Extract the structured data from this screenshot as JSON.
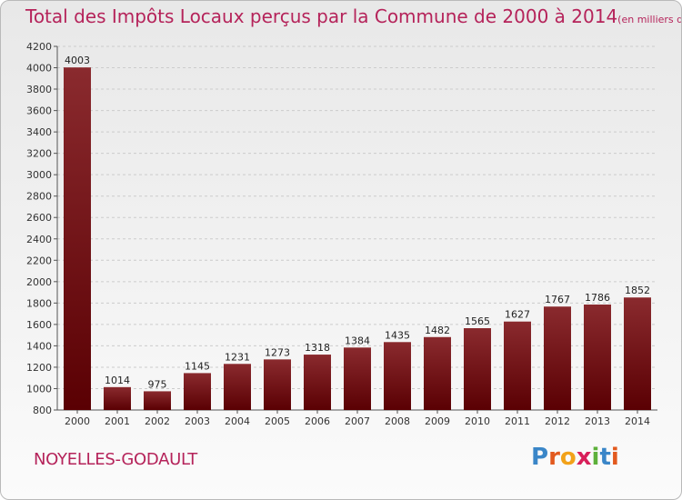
{
  "title": "Total des Impôts Locaux perçus par la Commune de 2000 à 2014",
  "unit_note": "(en milliers d'€)",
  "commune": "NOYELLES-GODAULT",
  "logo": {
    "letters": [
      "P",
      "r",
      "o",
      "x",
      "i",
      "t",
      "i"
    ],
    "colors": [
      "#3a86c8",
      "#e2591e",
      "#f2a21a",
      "#d81f5a",
      "#5db03b",
      "#3a86c8",
      "#e2591e"
    ]
  },
  "colors": {
    "bar_top": "#8a2a2e",
    "bar_bottom": "#5a0003",
    "title": "#b5235a"
  },
  "chart_data": {
    "type": "bar",
    "title": "Total des Impôts Locaux perçus par la Commune de 2000 à 2014",
    "xlabel": "",
    "ylabel": "en milliers d'€",
    "categories": [
      "2000",
      "2001",
      "2002",
      "2003",
      "2004",
      "2005",
      "2006",
      "2007",
      "2008",
      "2009",
      "2010",
      "2011",
      "2012",
      "2013",
      "2014"
    ],
    "values": [
      4003,
      1014,
      975,
      1145,
      1231,
      1273,
      1318,
      1384,
      1435,
      1482,
      1565,
      1627,
      1767,
      1786,
      1852
    ],
    "ylim": [
      800,
      4200
    ],
    "yticks": [
      800,
      1000,
      1200,
      1400,
      1600,
      1800,
      2000,
      2200,
      2400,
      2600,
      2800,
      3000,
      3200,
      3400,
      3600,
      3800,
      4000,
      4200
    ],
    "grid": true
  }
}
